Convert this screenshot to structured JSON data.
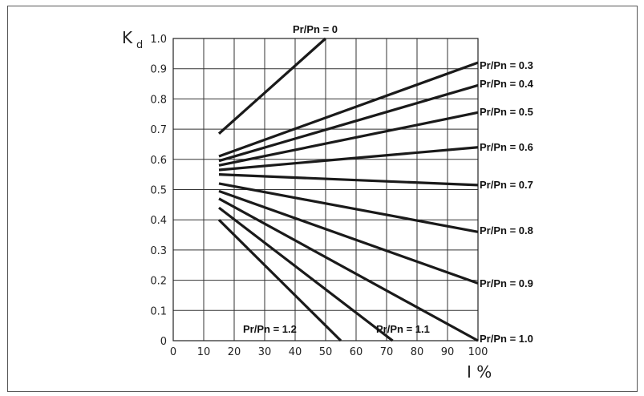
{
  "chart_data": {
    "type": "line",
    "ylabel": "K",
    "ylabel_subscript": "d",
    "xlabel": "I %",
    "xlim": [
      0,
      100
    ],
    "ylim": [
      0,
      1.0
    ],
    "xticks": [
      "0",
      "10",
      "20",
      "30",
      "40",
      "50",
      "60",
      "70",
      "80",
      "90",
      "100"
    ],
    "yticks": [
      "0",
      "0.1",
      "0.2",
      "0.3",
      "0.4",
      "0.5",
      "0.6",
      "0.7",
      "0.8",
      "0.9",
      "1.0"
    ],
    "grid": true,
    "series": [
      {
        "name": "Pr/Pn = 0",
        "points": [
          [
            15,
            0.685
          ],
          [
            50,
            1.0
          ]
        ]
      },
      {
        "name": "Pr/Pn = 0.3",
        "points": [
          [
            15,
            0.61
          ],
          [
            100,
            0.92
          ]
        ]
      },
      {
        "name": "Pr/Pn = 0.4",
        "points": [
          [
            15,
            0.595
          ],
          [
            100,
            0.845
          ]
        ]
      },
      {
        "name": "Pr/Pn = 0.5",
        "points": [
          [
            15,
            0.58
          ],
          [
            100,
            0.755
          ]
        ]
      },
      {
        "name": "Pr/Pn = 0.6",
        "points": [
          [
            15,
            0.565
          ],
          [
            100,
            0.64
          ]
        ]
      },
      {
        "name": "Pr/Pn = 0.7",
        "points": [
          [
            15,
            0.55
          ],
          [
            100,
            0.515
          ]
        ]
      },
      {
        "name": "Pr/Pn = 0.8",
        "points": [
          [
            15,
            0.52
          ],
          [
            100,
            0.36
          ]
        ]
      },
      {
        "name": "Pr/Pn = 0.9",
        "points": [
          [
            15,
            0.495
          ],
          [
            100,
            0.19
          ]
        ]
      },
      {
        "name": "Pr/Pn = 1.0",
        "points": [
          [
            15,
            0.47
          ],
          [
            100,
            0.0
          ]
        ]
      },
      {
        "name": "Pr/Pn = 1.1",
        "points": [
          [
            15,
            0.44
          ],
          [
            72,
            0.0
          ]
        ]
      },
      {
        "name": "Pr/Pn = 1.2",
        "points": [
          [
            15,
            0.4
          ],
          [
            55,
            0.0
          ]
        ]
      }
    ]
  }
}
